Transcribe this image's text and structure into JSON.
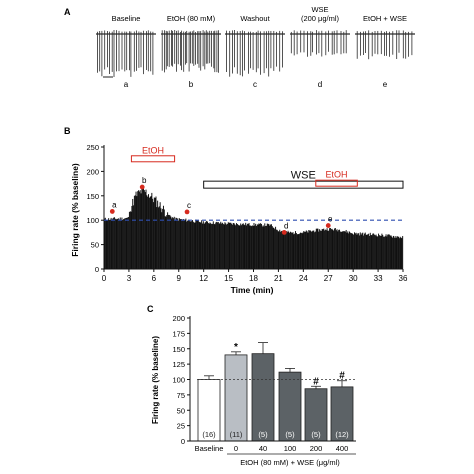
{
  "panels": {
    "a": {
      "letter": "A"
    },
    "b": {
      "letter": "B"
    },
    "c": {
      "letter": "C"
    }
  },
  "colors": {
    "trace": "#2a2a2a",
    "baseline_line": "#2f4fb0",
    "etoh_box": "#d62a1e",
    "marker": "#d62a1e",
    "bar_baseline": "#ffffff",
    "bar_etoh": "#b9bec4",
    "bar_wse": "#5c6266"
  },
  "chart_data": [
    {
      "type": "line",
      "title": "",
      "segments": [
        {
          "label": "Baseline",
          "marker": "a"
        },
        {
          "label": "EtOH (80 mM)",
          "marker": "b"
        },
        {
          "label": "Washout",
          "marker": "c"
        },
        {
          "label": "WSE",
          "label2": "(200 μg/ml)",
          "marker": "d"
        },
        {
          "label": "EtOH + WSE",
          "marker": "e"
        }
      ]
    },
    {
      "type": "bar",
      "xlabel": "Time (min)",
      "ylabel": "Firing rate (% baseline)",
      "xlim": [
        0,
        36
      ],
      "ylim": [
        0,
        250
      ],
      "xticks": [
        0,
        3,
        6,
        9,
        12,
        15,
        18,
        21,
        24,
        27,
        30,
        33,
        36
      ],
      "yticks": [
        0,
        50,
        100,
        150,
        200,
        250
      ],
      "reference_line": 100,
      "bin_width_min": 0.1,
      "envelope": [
        [
          0,
          102
        ],
        [
          2.9,
          104
        ],
        [
          3.2,
          125
        ],
        [
          3.8,
          150
        ],
        [
          4.5,
          160
        ],
        [
          5.0,
          158
        ],
        [
          5.6,
          150
        ],
        [
          6.2,
          140
        ],
        [
          7.0,
          125
        ],
        [
          7.8,
          110
        ],
        [
          8.5,
          103
        ],
        [
          10,
          100
        ],
        [
          12,
          96
        ],
        [
          15,
          93
        ],
        [
          18,
          91
        ],
        [
          20,
          90
        ],
        [
          21,
          80
        ],
        [
          22.5,
          74
        ],
        [
          24,
          75
        ],
        [
          25.5,
          79
        ],
        [
          27,
          82
        ],
        [
          28.5,
          80
        ],
        [
          30,
          73
        ],
        [
          33,
          70
        ],
        [
          36,
          65
        ]
      ],
      "annotations": [
        {
          "label": "EtOH",
          "x0": 3.3,
          "x1": 8.5,
          "y": 232,
          "style": "red-box"
        },
        {
          "label": "WSE",
          "x0": 12,
          "x1": 36,
          "y": 180,
          "style": "black-box"
        },
        {
          "label": "EtOH",
          "x0": 25.5,
          "x1": 30.5,
          "y": 182,
          "style": "red-box"
        }
      ],
      "markers": [
        {
          "label": "a",
          "x": 1,
          "y": 118
        },
        {
          "label": "b",
          "x": 4.6,
          "y": 168
        },
        {
          "label": "c",
          "x": 10,
          "y": 117
        },
        {
          "label": "d",
          "x": 21.7,
          "y": 75
        },
        {
          "label": "e",
          "x": 27,
          "y": 89
        }
      ]
    },
    {
      "type": "bar",
      "ylabel": "Firing rate (% baseline)",
      "xlabel": "EtOH (80 mM) + WSE (μg/ml)",
      "ylim": [
        0,
        200
      ],
      "yticks": [
        0,
        25,
        50,
        75,
        100,
        125,
        150,
        175,
        200
      ],
      "reference_line": 100,
      "categories": [
        "Baseline",
        "0",
        "40",
        "100",
        "200",
        "400"
      ],
      "values": [
        100,
        140,
        142,
        112,
        85,
        88
      ],
      "errors": [
        6,
        5,
        18,
        6,
        4,
        10
      ],
      "n": [
        "(16)",
        "(11)",
        "(5)",
        "(5)",
        "(5)",
        "(12)"
      ],
      "significance": [
        "",
        "*",
        "",
        "",
        "#",
        "#"
      ]
    }
  ]
}
